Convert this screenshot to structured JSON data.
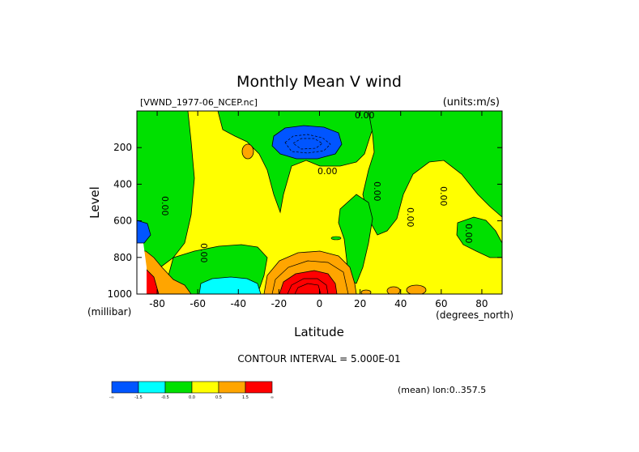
{
  "chart_data": {
    "type": "heatmap",
    "title": "Monthly Mean V wind",
    "dataset_label": "[VWND_1977-06_NCEP.nc]",
    "units_label": "(units:m/s)",
    "xlabel": "Latitude",
    "ylabel": "Level",
    "y_units_label": "(millibar)",
    "x_units_label": "(degrees_north)",
    "xlim": [
      -90,
      90
    ],
    "ylim": [
      0,
      1000
    ],
    "y_reversed": true,
    "x_ticks": [
      -80,
      -60,
      -40,
      -20,
      0,
      20,
      40,
      60,
      80
    ],
    "x_tick_labels": [
      "-80",
      "-60",
      "-40",
      "-20",
      "0",
      "20",
      "40",
      "60",
      "80"
    ],
    "y_ticks": [
      200,
      400,
      600,
      800,
      1000
    ],
    "y_tick_labels": [
      "200",
      "400",
      "600",
      "800",
      "1000"
    ],
    "contour_interval_label": "CONTOUR INTERVAL = 5.000E-01",
    "footer_label": "(mean) lon:0..357.5",
    "contour_labels": [
      "0.00",
      "0.00",
      "0.00",
      "0.00",
      "0.00",
      "0.00",
      "0.00",
      "0.00"
    ],
    "legend": {
      "colors": [
        "#0055ff",
        "#00ffff",
        "#00e000",
        "#ffff00",
        "#ffa500",
        "#ff0000"
      ],
      "labels": [
        "-∞",
        "-1.5",
        "-0.5",
        "0.0",
        "0.5",
        "1.5",
        "∞"
      ]
    },
    "grid": false,
    "regions": [
      {
        "level": "negative strong",
        "color": "#0055ff",
        "lat_range": [
          -21,
          11
        ],
        "level_range": [
          70,
          210
        ]
      },
      {
        "level": "negative moderate",
        "color": "#00ffff",
        "lat_range": [
          -58,
          -28
        ],
        "level_range": [
          920,
          1000
        ]
      },
      {
        "level": "positive strong",
        "color": "#ff0000",
        "lat_range": [
          -22,
          16
        ],
        "level_range": [
          880,
          1000
        ]
      },
      {
        "level": "positive",
        "color": "#ffa500",
        "lat_range": [
          -90,
          -70
        ],
        "level_range": [
          760,
          1000
        ]
      },
      {
        "level": "near zero negative",
        "color": "#00e000",
        "lat_range": [
          -80,
          -52
        ],
        "level_range": [
          30,
          700
        ]
      },
      {
        "level": "near zero negative",
        "color": "#00e000",
        "lat_range": [
          -34,
          20
        ],
        "level_range": [
          30,
          280
        ]
      },
      {
        "level": "near zero negative",
        "color": "#00e000",
        "lat_range": [
          20,
          90
        ],
        "level_range": [
          30,
          700
        ]
      }
    ]
  }
}
